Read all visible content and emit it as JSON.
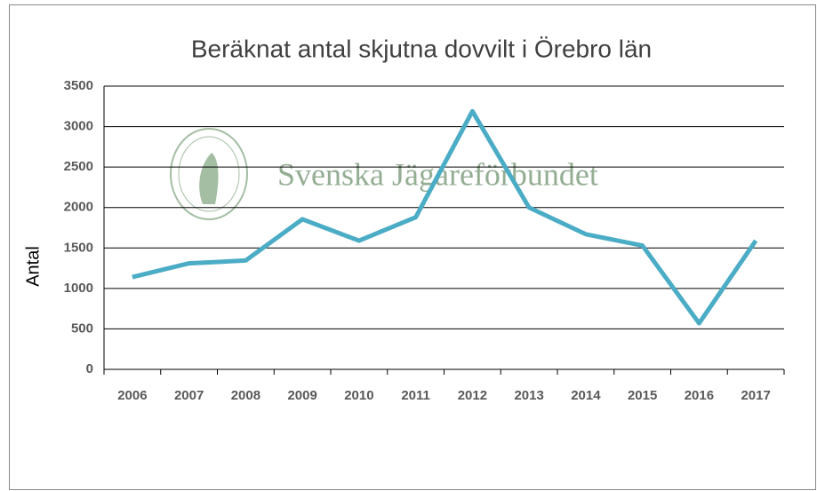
{
  "chart_data": {
    "type": "line",
    "title": "Beräknat antal skjutna dovvilt i Örebro län",
    "ylabel": "Antal",
    "watermark": "Svenska Jägareförbundet",
    "categories": [
      "2006",
      "2007",
      "2008",
      "2009",
      "2010",
      "2011",
      "2012",
      "2013",
      "2014",
      "2015",
      "2016",
      "2017"
    ],
    "series": [
      {
        "name": "Antal",
        "color": "#4bacc6",
        "values": [
          1140,
          1310,
          1345,
          1855,
          1590,
          1880,
          3190,
          2000,
          1670,
          1530,
          570,
          1590
        ]
      }
    ],
    "ylim": [
      0,
      3500
    ],
    "yticks": [
      0,
      500,
      1000,
      1500,
      2000,
      2500,
      3000,
      3500
    ],
    "grid": true
  }
}
